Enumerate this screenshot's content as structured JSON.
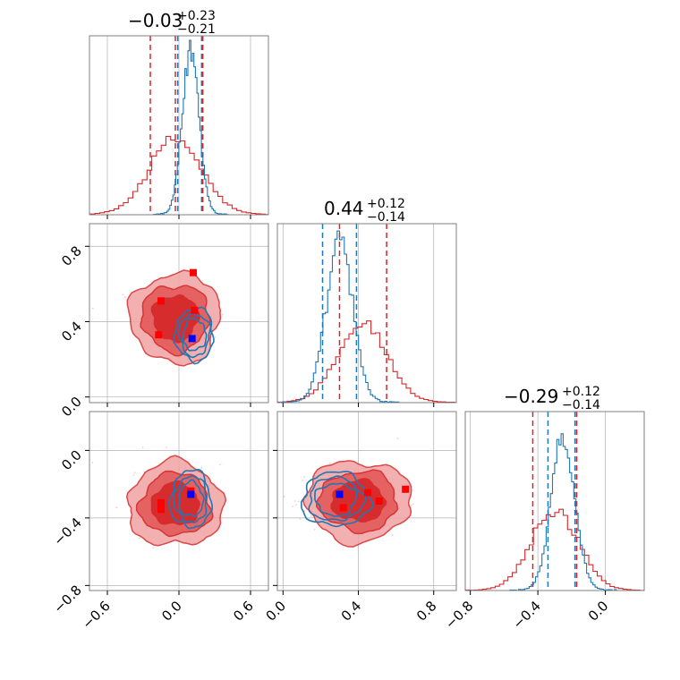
{
  "colors": {
    "red": "#d62728",
    "blue": "#1f77b4",
    "grid": "#b0b0b0",
    "frame": "#808080"
  },
  "chart_data": [
    {
      "type": "histogram",
      "panel": "p1-marginal",
      "title": {
        "main": "−0.03",
        "sup": "+0.23",
        "sub": "−0.21"
      },
      "xlim": [
        -0.75,
        0.75
      ],
      "grid": true,
      "series": [
        {
          "name": "",
          "color": "red",
          "center": -0.03,
          "sigma": 0.22,
          "peak": 0.42,
          "bins": 50,
          "quantile_lines": [
            -0.24,
            -0.03,
            0.2
          ]
        },
        {
          "name": "",
          "color": "blue",
          "center": 0.1,
          "sigma": 0.07,
          "peak": 0.92,
          "bins": 50,
          "quantile_lines": [
            -0.01,
            0.19
          ]
        }
      ]
    },
    {
      "type": "contour",
      "panel": "p1-vs-p2",
      "xlim": [
        -0.75,
        0.75
      ],
      "ylim": [
        -0.03,
        0.92
      ],
      "yticks": [
        "0.0",
        "0.4",
        "0.8"
      ],
      "grid": true,
      "series": [
        {
          "name": "",
          "color": "red",
          "center": [
            -0.03,
            0.42
          ],
          "spread": [
            0.38,
            0.24
          ],
          "levels": [
            0.55,
            0.82,
            1.0
          ],
          "markers": [
            [
              0.12,
              0.66
            ],
            [
              -0.15,
              0.51
            ],
            [
              0.13,
              0.46
            ],
            [
              -0.17,
              0.33
            ]
          ]
        },
        {
          "name": "",
          "color": "blue",
          "center": [
            0.13,
            0.33
          ],
          "spread": [
            0.16,
            0.14
          ],
          "levels": [
            0.6,
            0.85,
            1.0
          ],
          "markers": [
            [
              0.11,
              0.31
            ]
          ]
        }
      ]
    },
    {
      "type": "histogram",
      "panel": "p2-marginal",
      "title": {
        "main": "0.44",
        "sup": "+0.12",
        "sub": "−0.14"
      },
      "xlim": [
        -0.03,
        0.92
      ],
      "grid": true,
      "series": [
        {
          "name": "",
          "color": "red",
          "center": 0.42,
          "sigma": 0.13,
          "peak": 0.45,
          "bins": 50,
          "quantile_lines": [
            0.3,
            0.55
          ]
        },
        {
          "name": "",
          "color": "blue",
          "center": 0.3,
          "sigma": 0.07,
          "peak": 0.9,
          "bins": 50,
          "quantile_lines": [
            0.21,
            0.39
          ]
        }
      ]
    },
    {
      "type": "contour",
      "panel": "p1-vs-p3",
      "xlim": [
        -0.75,
        0.75
      ],
      "ylim": [
        -0.83,
        0.23
      ],
      "yticks": [
        "−0.8",
        "−0.4",
        "0.0"
      ],
      "xticks": [
        "−0.6",
        "0.0",
        "0.6"
      ],
      "grid": true,
      "series": [
        {
          "name": "",
          "color": "red",
          "center": [
            -0.03,
            -0.32
          ],
          "spread": [
            0.4,
            0.25
          ],
          "levels": [
            0.55,
            0.82,
            1.0
          ],
          "markers": [
            [
              0.1,
              -0.24
            ],
            [
              -0.15,
              -0.31
            ],
            [
              -0.15,
              -0.35
            ]
          ]
        },
        {
          "name": "",
          "color": "blue",
          "center": [
            0.1,
            -0.29
          ],
          "spread": [
            0.17,
            0.17
          ],
          "levels": [
            0.6,
            0.85,
            1.0
          ],
          "markers": [
            [
              0.1,
              -0.26
            ]
          ]
        }
      ]
    },
    {
      "type": "contour",
      "panel": "p2-vs-p3",
      "xlim": [
        -0.03,
        0.92
      ],
      "ylim": [
        -0.83,
        0.23
      ],
      "xticks": [
        "0.0",
        "0.4",
        "0.8"
      ],
      "grid": true,
      "series": [
        {
          "name": "",
          "color": "red",
          "center": [
            0.4,
            -0.3
          ],
          "spread": [
            0.28,
            0.24
          ],
          "levels": [
            0.55,
            0.82,
            1.0
          ],
          "markers": [
            [
              0.65,
              -0.23
            ],
            [
              0.45,
              -0.25
            ],
            [
              0.51,
              -0.3
            ],
            [
              0.32,
              -0.34
            ]
          ]
        },
        {
          "name": "",
          "color": "blue",
          "center": [
            0.28,
            -0.29
          ],
          "spread": [
            0.18,
            0.16
          ],
          "levels": [
            0.6,
            0.85,
            1.0
          ],
          "markers": [
            [
              0.3,
              -0.26
            ]
          ]
        }
      ]
    },
    {
      "type": "histogram",
      "panel": "p3-marginal",
      "title": {
        "main": "−0.29",
        "sup": "+0.12",
        "sub": "−0.14"
      },
      "xlim": [
        -0.83,
        0.23
      ],
      "xticks": [
        "−0.8",
        "−0.4",
        "0.0"
      ],
      "grid": true,
      "series": [
        {
          "name": "",
          "color": "red",
          "center": -0.3,
          "sigma": 0.14,
          "peak": 0.45,
          "bins": 50,
          "quantile_lines": [
            -0.43,
            -0.17
          ]
        },
        {
          "name": "",
          "color": "blue",
          "center": -0.25,
          "sigma": 0.07,
          "peak": 0.86,
          "bins": 50,
          "quantile_lines": [
            -0.34,
            -0.18
          ]
        }
      ]
    }
  ]
}
